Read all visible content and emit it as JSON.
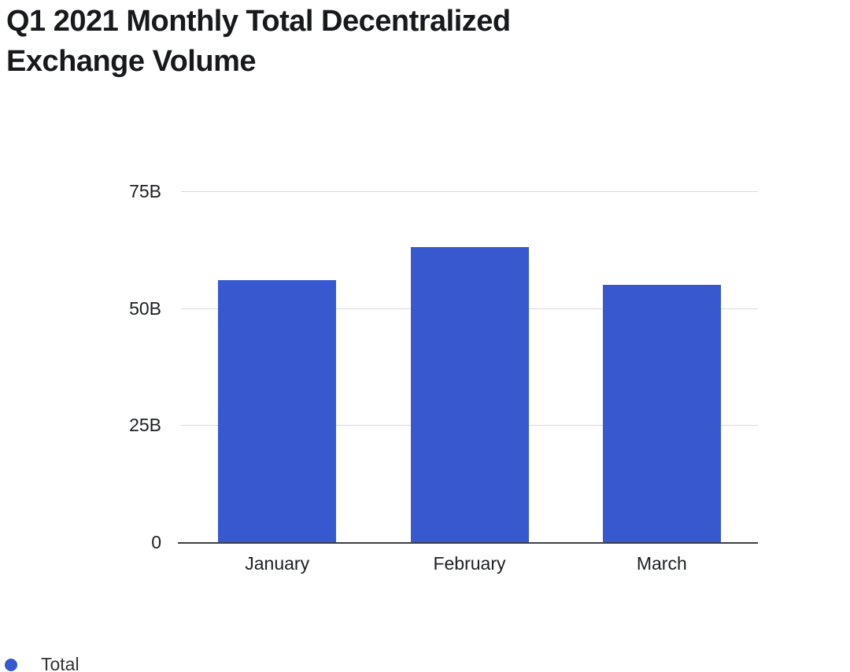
{
  "chart_data": {
    "type": "bar",
    "title": "Q1 2021 Monthly Total Decentralized Exchange Volume",
    "categories": [
      "January",
      "February",
      "March"
    ],
    "series": [
      {
        "name": "Total",
        "values": [
          56,
          63,
          55
        ]
      }
    ],
    "unit": "B",
    "xlabel": "",
    "ylabel": "",
    "ylim": [
      0,
      75
    ],
    "y_ticks": [
      {
        "value": 0,
        "label": "0"
      },
      {
        "value": 25,
        "label": "25B"
      },
      {
        "value": 50,
        "label": "50B"
      },
      {
        "value": 75,
        "label": "75B"
      }
    ],
    "grid": true,
    "legend_position": "bottom-left",
    "bar_color": "#3858d0",
    "colors": {
      "bar": "#3858d0",
      "gridline": "#d9d9d9",
      "axis_line": "#3d4043",
      "title_text": "#17191d",
      "tick_text": "#1c1e21",
      "legend_text": "#333333",
      "background": "#ffffff"
    }
  }
}
